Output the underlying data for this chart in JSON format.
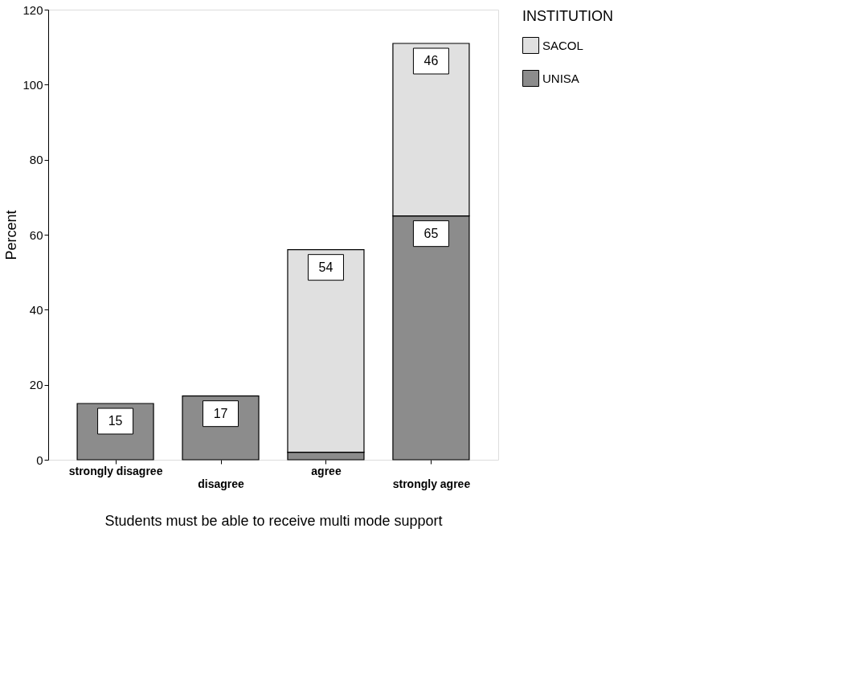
{
  "chart_data": {
    "type": "bar",
    "stacked": true,
    "xlabel": "Students must be able to receive multi mode support",
    "ylabel": "Percent",
    "legend_title": "INSTITUTION",
    "legend": "right",
    "grid": false,
    "categories": [
      "strongly disagree",
      "disagree",
      "agree",
      "strongly agree"
    ],
    "ylim": [
      0,
      120
    ],
    "yticks": [
      0,
      20,
      40,
      60,
      80,
      100,
      120
    ],
    "series": [
      {
        "name": "UNISA",
        "color": "#8c8c8c",
        "values": [
          15,
          17,
          2,
          65
        ],
        "value_labels": [
          "15",
          "17",
          null,
          "65"
        ]
      },
      {
        "name": "SACOL",
        "color": "#e0e0e0",
        "values": [
          null,
          null,
          54,
          46
        ],
        "value_labels": [
          null,
          null,
          "54",
          "46"
        ]
      }
    ]
  }
}
